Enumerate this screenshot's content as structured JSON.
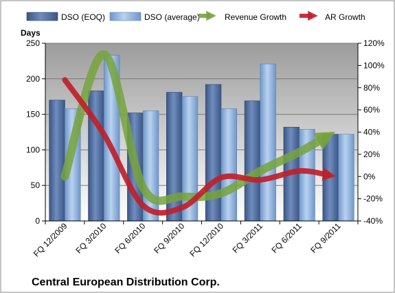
{
  "colors": {
    "dso_eoq": "#4F6D9E",
    "dso_average": "#8EB4E3",
    "revenue_growth": "#77A33C",
    "ar_growth": "#C0202A",
    "plot_top": "#9C9C9C",
    "plot_bottom": "#FFFFFF"
  },
  "chart_data": {
    "type": "bar",
    "title": "Central European Distribution Corp.",
    "ylabel": "Days",
    "ylim": [
      0,
      250
    ],
    "y_ticks": [
      "0",
      "50",
      "100",
      "150",
      "200",
      "250"
    ],
    "y2lim": [
      -40,
      120
    ],
    "y2_ticks": [
      "-40%",
      "-20%",
      "0%",
      "20%",
      "40%",
      "60%",
      "80%",
      "100%",
      "120%"
    ],
    "categories": [
      "FQ 12/2009",
      "FQ 3/2010",
      "FQ 6/2010",
      "FQ 9/2010",
      "FQ 12/2010",
      "FQ 3/2011",
      "FQ 6/2011",
      "FQ 9/2011"
    ],
    "grid": true,
    "legend_position": "top",
    "series": [
      {
        "name": "DSO (EOQ)",
        "type": "bar",
        "axis": "left",
        "values": [
          170,
          183,
          152,
          181,
          192,
          169,
          132,
          122
        ]
      },
      {
        "name": "DSO (average)",
        "type": "bar",
        "axis": "left",
        "values": [
          158,
          233,
          155,
          175,
          158,
          221,
          129,
          122
        ]
      },
      {
        "name": "Revenue Growth",
        "type": "line",
        "axis": "right",
        "unit": "%",
        "values": [
          0,
          110,
          -10,
          -18,
          -15,
          5,
          22,
          42
        ]
      },
      {
        "name": "AR Growth",
        "type": "line",
        "axis": "right",
        "unit": "%",
        "values": [
          87,
          38,
          -26,
          -28,
          -1,
          -3,
          5,
          0
        ]
      }
    ]
  }
}
